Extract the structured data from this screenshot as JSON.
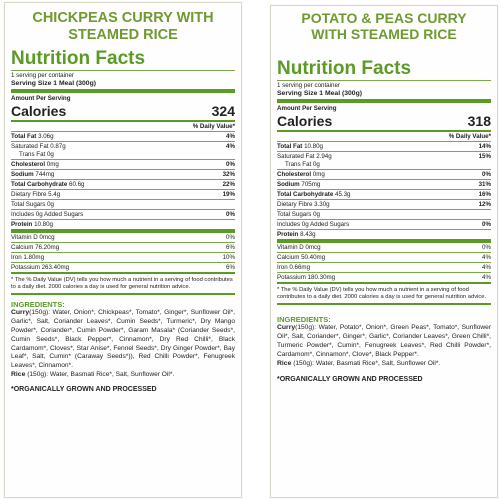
{
  "left": {
    "product_title_line1": "CHICKPEAS CURRY WITH",
    "product_title_line2": "STEAMED RICE",
    "nf_title": "Nutrition Facts",
    "servings": "1 serving per container",
    "serving_size": "Serving Size 1 Meal (300g)",
    "amount_per_serving": "Amount Per Serving",
    "calories_label": "Calories",
    "calories_value": "324",
    "dv_header": "% Daily Value*",
    "total_fat_label": "Total Fat",
    "total_fat_amount": "3.06g",
    "total_fat_dv": "4%",
    "sat_fat_label": "Saturated Fat 0.87g",
    "sat_fat_dv": "4%",
    "trans_fat_label": "Trans Fat 0g",
    "chol_label": "Cholesterol",
    "chol_amount": "0mg",
    "chol_dv": "0%",
    "sodium_label": "Sodium",
    "sodium_amount": "744mg",
    "sodium_dv": "32%",
    "carb_label": "Total Carbohydrate",
    "carb_amount": "60.6g",
    "carb_dv": "22%",
    "fibre_label": "Dietary Fibre 5.4g",
    "fibre_dv": "19%",
    "sugars_label": "Total Sugars 0g",
    "added_sugars_label": "Includes 0g Added Sugars",
    "added_sugars_dv": "0%",
    "protein_label": "Protein",
    "protein_amount": "10.80g",
    "vitd_label": "Vitamin D 0mcg",
    "vitd_dv": "0%",
    "calcium_label": "Calcium 76.20mg",
    "calcium_dv": "6%",
    "iron_label": "Iron 1.80mg",
    "iron_dv": "10%",
    "potassium_label": "Potassium 263.40mg",
    "potassium_dv": "6%",
    "footnote": "* The % Daily Value (DV) tells you how much a nutrient in a serving of food contributes to a daily diet. 2000 calories a day is used for general nutrition advice.",
    "ingredients_head": "INGREDIENTS:",
    "curry_label": "Curry",
    "curry_text": "(150g): Water, Onion*, Chickpeas*, Tomato*, Ginger*, Sunflower Oil*, Garlic*, Salt, Coriander Leaves*, Cumin Seeds*, Turmeric*, Dry Mango Powder*, Coriander*, Cumin Powder*, Garam Masala* (Coriander Seeds*, Cumin Seeds*, Black Pepper*, Cinnamon*, Dry Red Chilli*, Black Cardamom*, Cloves*, Star Anise*, Fennel Seeds*, Dry Ginger Powder*, Bay Leaf*, Salt, Cumin* (Caraway Seeds*)), Red Chilli Powder*, Fenugreek Leaves*, Cinnamon*.",
    "rice_label": "Rice",
    "rice_text": " (150g): Water, Basmati Rice*, Salt, Sunflower Oil*.",
    "organic": "*ORGANICALLY GROWN AND PROCESSED"
  },
  "right": {
    "product_title_line1": "POTATO & PEAS CURRY",
    "product_title_line2": "WITH STEAMED RICE",
    "nf_title": "Nutrition Facts",
    "servings": "1 serving per container",
    "serving_size": "Serving Size 1 Meal (300g)",
    "amount_per_serving": "Amount Per Serving",
    "calories_label": "Calories",
    "calories_value": "318",
    "dv_header": "% Daily Value*",
    "total_fat_label": "Total Fat",
    "total_fat_amount": "10.80g",
    "total_fat_dv": "14%",
    "sat_fat_label": "Saturated Fat 2.94g",
    "sat_fat_dv": "15%",
    "trans_fat_label": "Trans Fat 0g",
    "chol_label": "Cholesterol",
    "chol_amount": "0mg",
    "chol_dv": "0%",
    "sodium_label": "Sodium",
    "sodium_amount": "705mg",
    "sodium_dv": "31%",
    "carb_label": "Total Carbohydrate",
    "carb_amount": "45.3g",
    "carb_dv": "16%",
    "fibre_label": "Dietary Fibre 3.30g",
    "fibre_dv": "12%",
    "sugars_label": "Total Sugars 0g",
    "added_sugars_label": "Includes 0g Added Sugars",
    "added_sugars_dv": "0%",
    "protein_label": "Protein",
    "protein_amount": "8.43g",
    "vitd_label": "Vitamin D 0mcg",
    "vitd_dv": "0%",
    "calcium_label": "Calcium 50.40mg",
    "calcium_dv": "4%",
    "iron_label": "Iron 0.66mg",
    "iron_dv": "4%",
    "potassium_label": "Potassium 180.30mg",
    "potassium_dv": "4%",
    "footnote": "* The % Daily Value (DV) tells you how much a nutrient in a serving of food contributes to a daily diet. 2000 calories a day is used for general nutrition advice.",
    "ingredients_head": "INGREDIENTS:",
    "curry_label": "Curry",
    "curry_text": "(150g): Water, Potato*, Onion*, Green Peas*, Tomato*, Sunflower Oil*, Salt, Coriander*, Ginger*, Garlic*, Coriander Leaves*, Green Chilli*, Turmeric Powder*, Cumin*, Fenugreek Leaves*, Red Chilli Powder*, Cardamom*, Cinnamon*, Clove*, Black Pepper*.",
    "rice_label": "Rice",
    "rice_text": " (150g): Water, Basmati Rice*, Salt, Sunflower Oil*.",
    "organic": "*ORGANICALLY GROWN AND PROCESSED"
  }
}
